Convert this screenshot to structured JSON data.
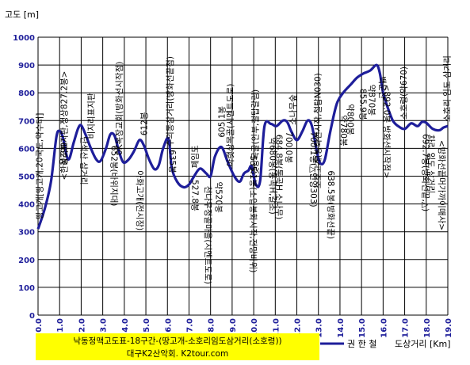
{
  "chart_data": {
    "type": "line",
    "ylabel": "고도 [m]",
    "xlabel": "도상거리 [Km]",
    "xlim": [
      0,
      19
    ],
    "ylim": [
      0,
      1000
    ],
    "x_ticks": [
      "0.0",
      "1.0",
      "2.0",
      "3.0",
      "4.0",
      "5.0",
      "6.0",
      "7.0",
      "8.0",
      "9.0",
      "10.0",
      "11.0",
      "12.0",
      "13.0",
      "14.0",
      "15.0",
      "16.0",
      "17.0",
      "18.0",
      "19.0"
    ],
    "y_ticks": [
      "0",
      "100",
      "200",
      "300",
      "400",
      "500",
      "600",
      "700",
      "800",
      "900",
      "1000"
    ],
    "grid": true,
    "series": [
      {
        "name": "권 한 철",
        "color": "#1e1e9a",
        "x": [
          0.0,
          0.3,
          0.6,
          0.85,
          1.0,
          1.15,
          1.4,
          1.65,
          1.85,
          2.0,
          2.2,
          2.45,
          2.7,
          2.9,
          3.15,
          3.35,
          3.55,
          3.75,
          3.95,
          4.2,
          4.45,
          4.7,
          4.9,
          5.15,
          5.4,
          5.6,
          5.8,
          6.05,
          6.2,
          6.45,
          6.75,
          7.0,
          7.2,
          7.5,
          7.8,
          8.0,
          8.2,
          8.5,
          8.8,
          9.1,
          9.35,
          9.55,
          9.75,
          9.9,
          10.1,
          10.3,
          10.5,
          10.8,
          11.05,
          11.35,
          11.55,
          11.75,
          12.0,
          12.25,
          12.5,
          12.7,
          12.95,
          13.1,
          13.3,
          13.55,
          13.85,
          14.15,
          14.5,
          14.8,
          15.1,
          15.4,
          15.7,
          15.85,
          16.0,
          16.2,
          16.45,
          16.7,
          17.0,
          17.3,
          17.6,
          17.8,
          18.0,
          18.3,
          18.6,
          18.8,
          19.0
        ],
        "values": [
          310,
          380,
          480,
          640,
          662,
          640,
          560,
          620,
          670,
          683,
          650,
          600,
          560,
          555,
          600,
          650,
          645,
          590,
          550,
          560,
          590,
          630,
          612,
          560,
          525,
          540,
          600,
          635,
          530,
          480,
          460,
          470,
          495,
          527,
          510,
          500,
          570,
          605,
          550,
          500,
          480,
          510,
          520,
          535,
          470,
          485,
          680,
          688,
          680,
          700,
          695,
          660,
          630,
          660,
          700,
          680,
          580,
          545,
          560,
          660,
          760,
          800,
          830,
          855,
          870,
          880,
          900,
          870,
          800,
          750,
          700,
          680,
          670,
          690,
          680,
          695,
          692,
          670,
          665,
          675,
          680
        ]
      }
    ],
    "annotations": [
      {
        "text": "땅고개[땅고개,20국도,약수터]",
        "x": 0.05,
        "y": 310
      },
      {
        "text": "662봉",
        "x": 0.9,
        "y": 662
      },
      {
        "text": "<한성국표지판,정상827.2봉>",
        "x": 1.2,
        "y": 560
      },
      {
        "text": "단석산 삼거리",
        "x": 1.85,
        "y": 683
      },
      {
        "text": "비지리표지판",
        "x": 2.45,
        "y": 600
      },
      {
        "text": "652봉(바위지대)",
        "x": 3.25,
        "y": 650
      },
      {
        "text": "0K목장교회(방화선시작점)",
        "x": 3.75,
        "y": 590
      },
      {
        "text": "아화고개(전시장)",
        "x": 4.45,
        "y": 560
      },
      {
        "text": "612봉",
        "x": 4.9,
        "y": 612
      },
      {
        "text": "635봉",
        "x": 5.95,
        "y": 635
      },
      {
        "text": "수의동삼거리(방화선끝점)",
        "x": 6.1,
        "y": 600
      },
      {
        "text": "527.8봉",
        "x": 7.0,
        "y": 527
      },
      {
        "text": "폐임도",
        "x": 7.25,
        "y": 495
      },
      {
        "text": "천나무정골마을(시멘트도로)",
        "x": 7.6,
        "y": 505
      },
      {
        "text": "605.1봉",
        "x": 8.5,
        "y": 605
      },
      {
        "text": "약520봉",
        "x": 8.1,
        "y": 520
      },
      {
        "text": "아랫상목골(시멘트도로)",
        "x": 8.9,
        "y": 500
      },
      {
        "text": "535.1봉(소입봉화시작,전망바위)",
        "x": 9.7,
        "y": 535
      },
      {
        "text": "윗상목골(안부,철탑갈림)",
        "x": 10.05,
        "y": 470
      },
      {
        "text": "약680봉(통곡H,갈초)",
        "x": 10.6,
        "y": 680
      },
      {
        "text": "684.8봉(통곡H,소나무)",
        "x": 10.9,
        "y": 690
      },
      {
        "text": "700.0봉",
        "x": 11.35,
        "y": 700
      },
      {
        "text": "소나무숲",
        "x": 11.8,
        "y": 650
      },
      {
        "text": "700.1봉(△언양303)",
        "x": 12.5,
        "y": 700
      },
      {
        "text": "소호고개(방화선시작,철탑N030)",
        "x": 12.95,
        "y": 580
      },
      {
        "text": "638.5봉(방화선끝)",
        "x": 13.3,
        "y": 560
      },
      {
        "text": "약780봉",
        "x": 13.9,
        "y": 760
      },
      {
        "text": "약800봉",
        "x": 14.2,
        "y": 800
      },
      {
        "text": "855.9봉",
        "x": 14.8,
        "y": 855
      },
      {
        "text": "약870봉",
        "x": 15.2,
        "y": 870
      },
      {
        "text": "백운산",
        "x": 15.7,
        "y": 900
      },
      {
        "text": "<892.0봉 방화선시작점>",
        "x": 15.9,
        "y": 870
      },
      {
        "text": "소호령(약670)",
        "x": 16.95,
        "y": 670
      },
      {
        "text": "692.7봉(방화선끝,△)",
        "x": 17.7,
        "y": 692
      },
      {
        "text": "차리 임도 삼거리",
        "x": 17.95,
        "y": 690
      },
      {
        "text": "<방화선끝머가까이매사>",
        "x": 18.45,
        "y": 670
      },
      {
        "text": "소호리 임도 삼거리",
        "x": 18.95,
        "y": 680
      }
    ],
    "caption_lines": [
      "낙동정맥고도표-18구간-(땅고개-소호리임도삼거리(소호령))",
      "대구K2산악회. K2tour.com"
    ],
    "caption_bg": "#ffff00"
  }
}
